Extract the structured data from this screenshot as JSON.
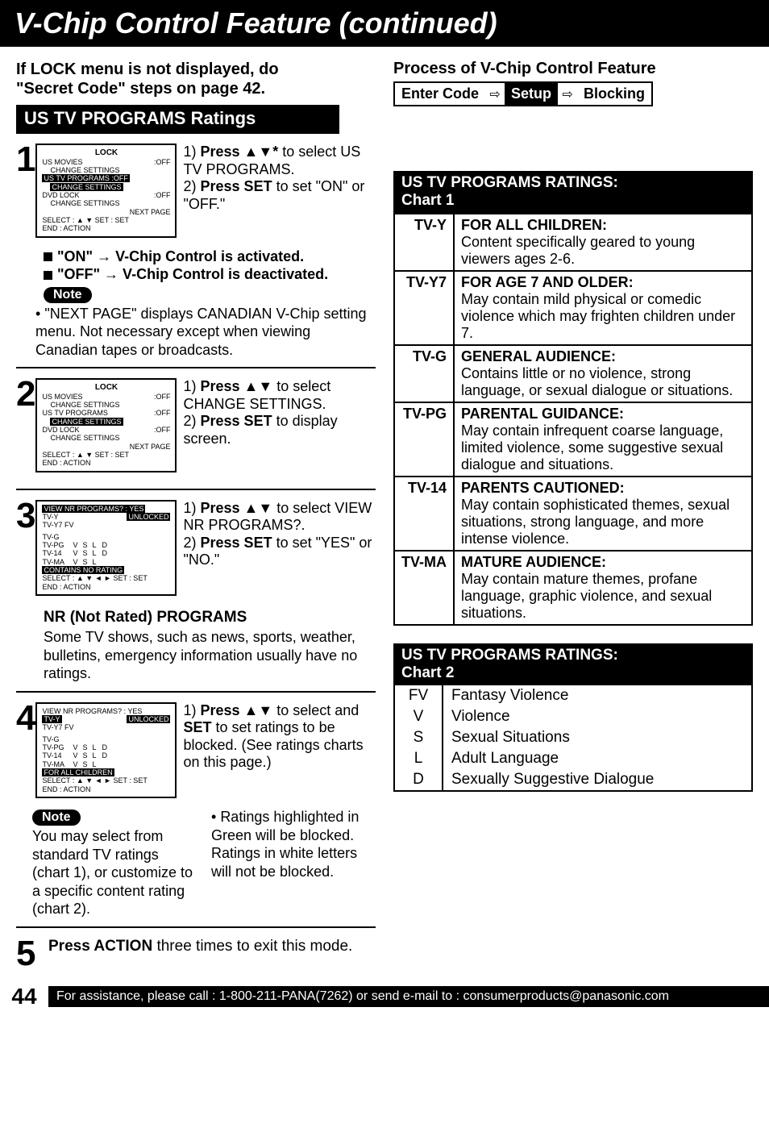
{
  "header": {
    "title": "V-Chip Control Feature (continued)"
  },
  "intro": {
    "line1": "If LOCK menu is not displayed, do",
    "line2": "\"Secret Code\" steps on page 42."
  },
  "section_bar": "US TV PROGRAMS Ratings",
  "process": {
    "title": "Process of V-Chip Control Feature",
    "b1": "Enter Code",
    "b2": "Setup",
    "b3": "Blocking"
  },
  "steps": {
    "s1": {
      "num": "1",
      "osd": {
        "title": "LOCK",
        "r1a": "US  MOVIES",
        "r1b": ":OFF",
        "r1c": "CHANGE  SETTINGS",
        "r2a": "US  TV  PROGRAMS     :OFF",
        "r2c": "CHANGE  SETTINGS",
        "r3a": "DVD  LOCK",
        "r3b": ":OFF",
        "r3c": "CHANGE  SETTINGS",
        "r4": "NEXT  PAGE",
        "f1": "SELECT : ▲ ▼          SET : SET",
        "f2": "END       : ACTION"
      },
      "i1a": "1)",
      "i1b": "Press ▲▼*",
      "i1c": " to select US TV PROGRAMS.",
      "i2a": "2)",
      "i2b": "Press SET",
      "i2c": " to set \"ON\" or \"OFF.\"",
      "on": "\"ON\" → V-Chip Control is activated.",
      "off": "\"OFF\" → V-Chip Control is deactivated.",
      "note": "Note",
      "notetxt": "\"NEXT PAGE\" displays CANADIAN V-Chip setting menu. Not necessary except when viewing Canadian tapes or broadcasts."
    },
    "s2": {
      "num": "2",
      "osd": {
        "title": "LOCK",
        "r1a": "US  MOVIES",
        "r1b": ":OFF",
        "r1c": "CHANGE  SETTINGS",
        "r2a": "US  TV  PROGRAMS",
        "r2b": ":OFF",
        "r2hl": "CHANGE  SETTINGS",
        "r3a": "DVD  LOCK",
        "r3b": ":OFF",
        "r3c": "CHANGE  SETTINGS",
        "r4": "NEXT  PAGE",
        "f1": "SELECT : ▲ ▼          SET : SET",
        "f2": "END       : ACTION"
      },
      "i1a": "1)",
      "i1b": "Press ▲▼",
      "i1c": " to select CHANGE SETTINGS.",
      "i2a": "2)",
      "i2b": "Press SET",
      "i2c": " to display screen."
    },
    "s3": {
      "num": "3",
      "osd": {
        "hl1": "VIEW NR  PROGRAMS?  :  YES",
        "r1": "TV-Y",
        "r1b": "UNLOCKED",
        "r2": "TV-Y7        FV",
        "g1a": "TV-G",
        "g1b": "",
        "g1c": "",
        "g1d": "",
        "g1e": "",
        "g2a": "TV-PG",
        "g2b": "V",
        "g2c": "S",
        "g2d": "L",
        "g2e": "D",
        "g3a": "TV-14",
        "g3b": "V",
        "g3c": "S",
        "g3d": "L",
        "g3e": "D",
        "g4a": "TV-MA",
        "g4b": "V",
        "g4c": "S",
        "g4d": "L",
        "g4e": "",
        "hl2": "CONTAINS  NO  RATING",
        "f1": "SELECT : ▲ ▼ ◄ ►   SET : SET",
        "f2": "END       : ACTION"
      },
      "i1a": "1)",
      "i1b": "Press ▲▼",
      "i1c": " to select VIEW NR PROGRAMS?.",
      "i2a": "2)",
      "i2b": "Press SET",
      "i2c": " to set \"YES\" or \"NO.\"",
      "nrtitle": "NR (Not Rated) PROGRAMS",
      "nrtext": "Some TV shows, such as news, sports, weather, bulletins, emergency information usually have no ratings."
    },
    "s4": {
      "num": "4",
      "osd": {
        "r0": "VIEW NR  PROGRAMS?  :  YES",
        "hl1": "TV-Y",
        "hl1b": "UNLOCKED",
        "r2": "TV-Y7        FV",
        "g1a": "TV-G",
        "g1b": "",
        "g1c": "",
        "g1d": "",
        "g1e": "",
        "g2a": "TV-PG",
        "g2b": "V",
        "g2c": "S",
        "g2d": "L",
        "g2e": "D",
        "g3a": "TV-14",
        "g3b": "V",
        "g3c": "S",
        "g3d": "L",
        "g3e": "D",
        "g4a": "TV-MA",
        "g4b": "V",
        "g4c": "S",
        "g4d": "L",
        "g4e": "",
        "hl2": "FOR  ALL  CHILDREN",
        "f1": "SELECT : ▲ ▼ ◄ ►   SET : SET",
        "f2": "END       : ACTION"
      },
      "i1a": "1)",
      "i1b": "Press ▲▼",
      "i1c": " to select and ",
      "i1d": "SET",
      "i1e": " to set ratings to be blocked. (See ratings charts on this page.)",
      "note": "Note",
      "ntext": "You may select from standard TV ratings (chart 1), or customize to a specific content rating (chart 2).",
      "bullet": "Ratings highlighted in Green will be blocked. Ratings in  white letters will not be blocked."
    },
    "s5": {
      "num": "5",
      "t1": "Press ",
      "t2": "ACTION",
      "t3": " three times to exit this mode."
    }
  },
  "chart1": {
    "head": "US TV PROGRAMS RATINGS:\nChart 1",
    "rows": [
      {
        "code": "TV-Y",
        "title": "FOR ALL CHILDREN:",
        "desc": "Content specifically geared to young viewers ages 2-6."
      },
      {
        "code": "TV-Y7",
        "title": "FOR AGE 7 AND OLDER:",
        "desc": "May contain mild physical or comedic violence which may frighten children under 7."
      },
      {
        "code": "TV-G",
        "title": "GENERAL AUDIENCE:",
        "desc": "Contains little or no violence, strong language, or sexual dialogue or situations."
      },
      {
        "code": "TV-PG",
        "title": "PARENTAL GUIDANCE:",
        "desc": "May contain infrequent coarse language, limited violence, some suggestive sexual dialogue and situations."
      },
      {
        "code": "TV-14",
        "title": "PARENTS CAUTIONED:",
        "desc": "May contain sophisticated themes, sexual situations, strong language, and more intense violence."
      },
      {
        "code": "TV-MA",
        "title": "MATURE AUDIENCE:",
        "desc": "May contain mature themes, profane language, graphic violence, and sexual situations."
      }
    ]
  },
  "chart2": {
    "head": "US TV PROGRAMS RATINGS:\nChart 2",
    "rows": [
      {
        "code": "FV",
        "desc": "Fantasy Violence"
      },
      {
        "code": "V",
        "desc": "Violence"
      },
      {
        "code": "S",
        "desc": "Sexual Situations"
      },
      {
        "code": "L",
        "desc": "Adult Language"
      },
      {
        "code": "D",
        "desc": "Sexually Suggestive Dialogue"
      }
    ]
  },
  "footer": {
    "page": "44",
    "bar": "For assistance, please call : 1-800-211-PANA(7262) or send e-mail to : consumerproducts@panasonic.com"
  }
}
